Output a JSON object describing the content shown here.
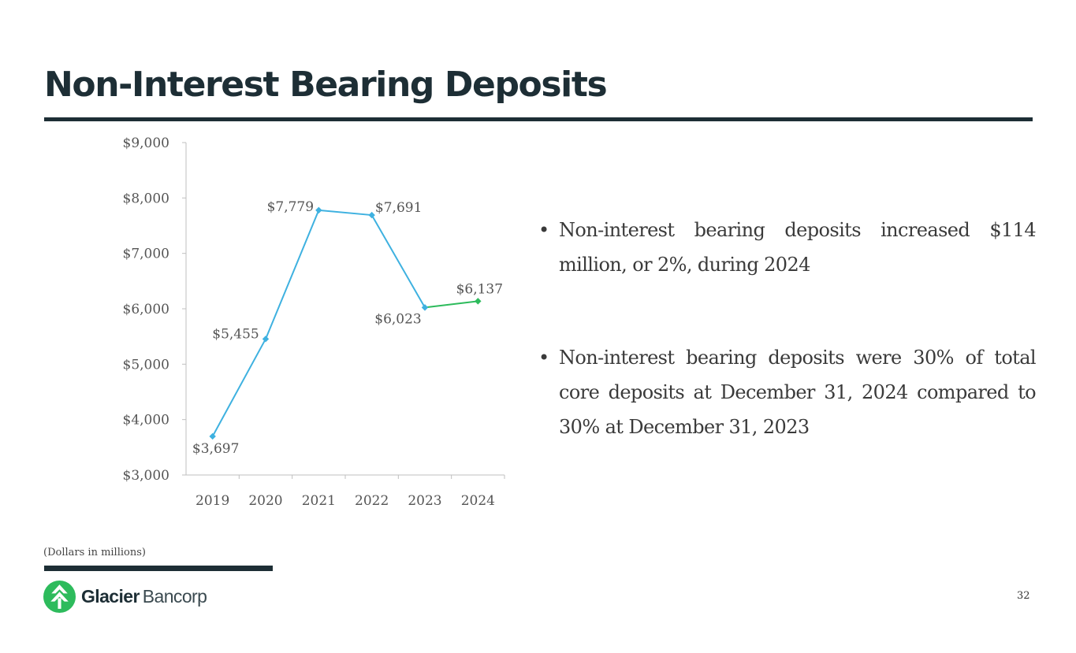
{
  "slide": {
    "title": "Non-Interest Bearing Deposits",
    "footnote": "(Dollars in millions)",
    "page_number": "32"
  },
  "brand": {
    "name_bold": "Glacier",
    "name_light": "Bancorp",
    "primary_color": "#1d2e35",
    "logo_color": "#2dbb5c",
    "logo_icon": "glacier-tree-icon"
  },
  "bullets": {
    "marker": "•",
    "items": [
      "Non-interest bearing deposits increased $114 million, or 2%, during 2024",
      "Non-interest bearing deposits were 30% of total core deposits at December 31, 2024 compared to 30% at December 31, 2023"
    ]
  },
  "chart_data": {
    "type": "line",
    "categories": [
      "2019",
      "2020",
      "2021",
      "2022",
      "2023",
      "2024"
    ],
    "values": [
      3697,
      5455,
      7779,
      7691,
      6023,
      6137
    ],
    "data_labels": [
      "$3,697",
      "$5,455",
      "$7,779",
      "$7,691",
      "$6,023",
      "$6,137"
    ],
    "series_colors": [
      "#3eb1e0",
      "#3eb1e0",
      "#3eb1e0",
      "#3eb1e0",
      "#3eb1e0",
      "#2dbb5c"
    ],
    "ylim": [
      3000,
      9000
    ],
    "yticks": [
      3000,
      4000,
      5000,
      6000,
      7000,
      8000,
      9000
    ],
    "ytick_labels": [
      "$3,000",
      "$4,000",
      "$5,000",
      "$6,000",
      "$7,000",
      "$8,000",
      "$9,000"
    ],
    "title": "",
    "xlabel": "",
    "ylabel": "",
    "grid": false,
    "legend": "none"
  }
}
